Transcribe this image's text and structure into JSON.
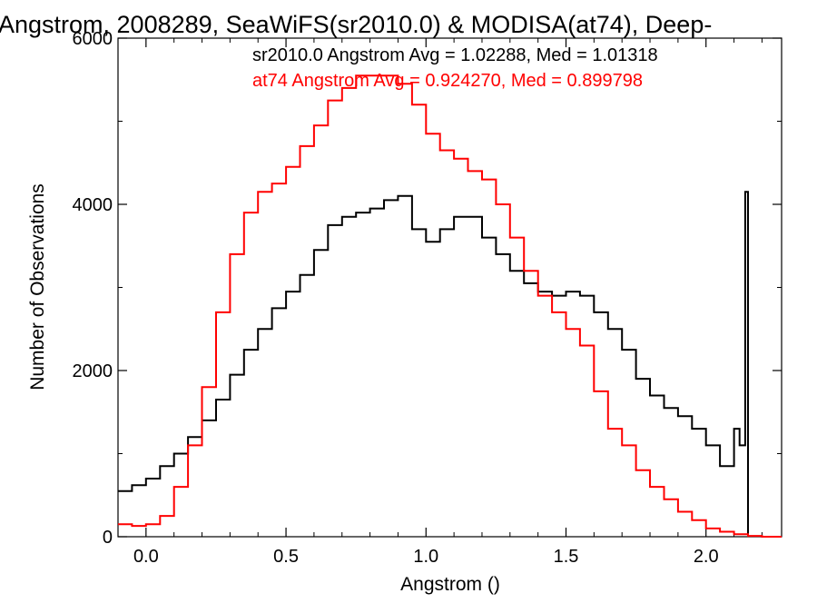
{
  "chart_data": {
    "type": "line",
    "title": "Angstrom, 2008289, SeaWiFS(sr2010.0) & MODISA(at74), Deep-",
    "xlabel": "Angstrom ()",
    "ylabel": "Number of Observations",
    "xlim": [
      -0.1,
      2.27
    ],
    "ylim": [
      0,
      6000
    ],
    "xticks": [
      0.0,
      0.5,
      1.0,
      1.5,
      2.0
    ],
    "xtick_labels": [
      "0.0",
      "0.5",
      "1.0",
      "1.5",
      "2.0"
    ],
    "yticks": [
      0,
      2000,
      4000,
      6000
    ],
    "ytick_labels": [
      "0",
      "2000",
      "4000",
      "6000"
    ],
    "grid": false,
    "legend_position": "top-right",
    "annotations": [
      {
        "text": "sr2010.0 Angstrom Avg = 1.02288, Med = 1.01318",
        "color": "#000000"
      },
      {
        "text": "at74 Angstrom Avg = 0.924270, Med = 0.899798",
        "color": "#ff0000"
      }
    ],
    "series": [
      {
        "color": "#000000",
        "x": [
          -0.1,
          -0.05,
          0.0,
          0.05,
          0.1,
          0.15,
          0.2,
          0.25,
          0.3,
          0.35,
          0.4,
          0.45,
          0.5,
          0.55,
          0.6,
          0.65,
          0.7,
          0.75,
          0.8,
          0.85,
          0.9,
          0.95,
          1.0,
          1.05,
          1.1,
          1.15,
          1.2,
          1.25,
          1.3,
          1.35,
          1.4,
          1.45,
          1.5,
          1.55,
          1.6,
          1.65,
          1.7,
          1.75,
          1.8,
          1.85,
          1.9,
          1.95,
          2.0,
          2.05,
          2.1,
          2.12,
          2.14,
          2.15
        ],
        "y": [
          550,
          620,
          700,
          850,
          1000,
          1200,
          1400,
          1650,
          1950,
          2250,
          2500,
          2750,
          2950,
          3150,
          3450,
          3750,
          3850,
          3900,
          3950,
          4050,
          4100,
          3700,
          3550,
          3700,
          3850,
          3850,
          3600,
          3400,
          3200,
          3050,
          2950,
          2900,
          2950,
          2900,
          2700,
          2500,
          2250,
          1900,
          1700,
          1550,
          1450,
          1300,
          1100,
          850,
          1300,
          1100,
          4150,
          1100
        ]
      },
      {
        "color": "#ff0000",
        "x": [
          -0.1,
          -0.05,
          0.0,
          0.05,
          0.1,
          0.15,
          0.2,
          0.25,
          0.3,
          0.35,
          0.4,
          0.45,
          0.5,
          0.55,
          0.6,
          0.65,
          0.7,
          0.75,
          0.8,
          0.85,
          0.9,
          0.95,
          1.0,
          1.05,
          1.1,
          1.15,
          1.2,
          1.25,
          1.3,
          1.35,
          1.4,
          1.45,
          1.5,
          1.55,
          1.6,
          1.65,
          1.7,
          1.75,
          1.8,
          1.85,
          1.9,
          1.95,
          2.0,
          2.05,
          2.1,
          2.15,
          2.2,
          2.27
        ],
        "y": [
          150,
          130,
          150,
          250,
          600,
          1100,
          1800,
          2700,
          3400,
          3900,
          4150,
          4250,
          4450,
          4700,
          4950,
          5250,
          5400,
          5550,
          5550,
          5550,
          5450,
          5200,
          4850,
          4650,
          4550,
          4400,
          4300,
          4000,
          3600,
          3200,
          2900,
          2700,
          2500,
          2300,
          1750,
          1300,
          1100,
          800,
          600,
          450,
          300,
          200,
          100,
          60,
          30,
          10,
          0,
          0
        ]
      }
    ]
  }
}
